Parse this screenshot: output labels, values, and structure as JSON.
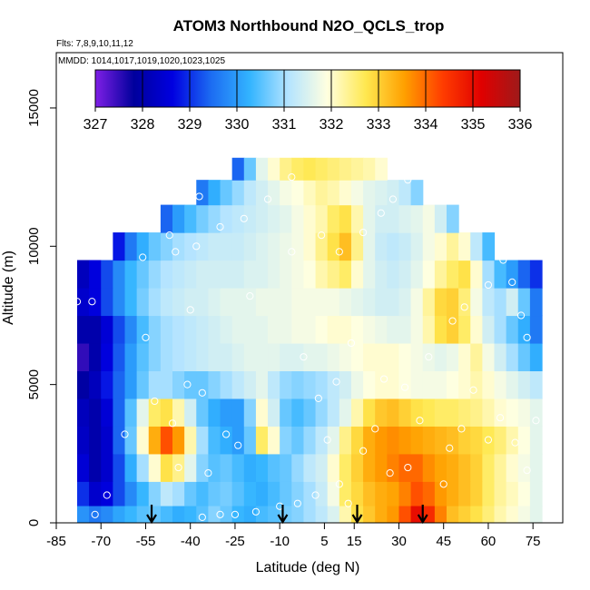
{
  "chart_data": {
    "type": "heatmap",
    "title": "ATOM3 Northbound N2O_QCLS_trop",
    "subtitle_flights": "Flts: 7,8,9,10,11,12",
    "subtitle_dates": "MMDD: 1014,1017,1019,1020,1023,1025",
    "xlabel": "Latitude (deg N)",
    "ylabel": "Altitude (m)",
    "xlim": [
      -85,
      85
    ],
    "ylim": [
      0,
      17000
    ],
    "x_ticks": [
      -85,
      -70,
      -55,
      -40,
      -25,
      -10,
      5,
      15,
      30,
      45,
      60,
      75
    ],
    "y_ticks": [
      0,
      5000,
      10000,
      15000
    ],
    "colorbar": {
      "ticks": [
        327,
        328,
        329,
        330,
        331,
        332,
        333,
        334,
        335,
        336
      ],
      "range": [
        327,
        336
      ],
      "colors": [
        "#7f1fe6",
        "#00009c",
        "#0000e0",
        "#1c6cf2",
        "#33b4ff",
        "#b4e4ff",
        "#ffffe0",
        "#ffe850",
        "#ffa000",
        "#ff3c00",
        "#e00000",
        "#9e1a1a"
      ]
    },
    "arrow_latitudes": [
      -53,
      -9,
      16,
      38
    ],
    "lat_bins": [
      -76,
      -72,
      -68,
      -64,
      -60,
      -56,
      -52,
      -48,
      -44,
      -40,
      -36,
      -32,
      -28,
      -24,
      -20,
      -16,
      -12,
      -8,
      -4,
      0,
      4,
      8,
      12,
      16,
      20,
      24,
      28,
      32,
      36,
      40,
      44,
      48,
      52,
      56,
      60,
      64,
      68,
      72,
      76
    ],
    "alt_levels": [
      250,
      1000,
      2000,
      3000,
      4000,
      5000,
      6000,
      7000,
      8000,
      9000,
      10000,
      11000,
      12000,
      12800
    ],
    "n2o_ppb": [
      [
        329.9,
        329.6,
        329.8,
        330.1,
        330.3,
        330.5,
        330.6,
        330.4,
        330.2,
        330.3,
        330.5,
        330.8,
        330.6,
        330.3,
        330.2,
        330.4,
        330.5,
        330.7,
        330.8,
        331.0,
        331.2,
        331.5,
        332.2,
        332.8,
        333.1,
        333.4,
        333.6,
        334.2,
        335.0,
        334.6,
        333.8,
        333.2,
        333.0,
        332.8,
        332.5,
        332.2,
        332.0,
        331.8,
        331.6
      ],
      [
        329.0,
        328.4,
        328.6,
        329.2,
        329.8,
        330.3,
        330.8,
        331.2,
        331.0,
        330.6,
        330.4,
        330.6,
        330.7,
        330.5,
        330.3,
        330.2,
        330.4,
        330.6,
        330.8,
        331.0,
        331.3,
        331.8,
        332.6,
        332.9,
        333.2,
        333.4,
        333.5,
        333.8,
        334.2,
        334.0,
        333.6,
        333.4,
        333.2,
        333.0,
        332.6,
        332.3,
        332.1,
        331.9,
        331.6
      ],
      [
        328.5,
        328.0,
        328.4,
        329.2,
        330.2,
        331.0,
        332.0,
        332.8,
        332.4,
        331.6,
        330.8,
        330.5,
        330.6,
        330.4,
        330.2,
        330.3,
        330.5,
        330.6,
        330.9,
        331.2,
        331.4,
        332.0,
        332.6,
        333.0,
        333.4,
        333.6,
        333.8,
        334.0,
        334.0,
        333.7,
        333.5,
        333.4,
        333.2,
        333.0,
        332.6,
        332.3,
        332.0,
        331.8,
        331.6
      ],
      [
        328.3,
        328.0,
        328.4,
        329.4,
        330.6,
        332.0,
        333.4,
        334.2,
        333.6,
        332.2,
        331.0,
        330.4,
        330.2,
        330.0,
        330.6,
        332.6,
        332.0,
        330.8,
        330.6,
        330.9,
        331.2,
        331.6,
        332.4,
        332.9,
        333.4,
        333.6,
        333.7,
        333.6,
        333.5,
        333.4,
        333.3,
        333.2,
        333.0,
        332.9,
        332.7,
        332.5,
        332.2,
        331.9,
        331.6
      ],
      [
        328.2,
        328.0,
        328.5,
        329.4,
        330.5,
        331.6,
        332.6,
        332.8,
        332.2,
        331.4,
        330.6,
        330.2,
        330.0,
        330.0,
        330.8,
        332.0,
        331.4,
        330.6,
        330.4,
        330.6,
        330.9,
        331.2,
        331.6,
        332.2,
        332.8,
        333.1,
        333.2,
        333.0,
        332.8,
        332.7,
        332.6,
        332.6,
        332.5,
        332.4,
        332.2,
        332.0,
        331.9,
        331.8,
        331.6
      ],
      [
        327.9,
        328.2,
        328.8,
        329.4,
        330.0,
        330.6,
        331.0,
        331.0,
        330.8,
        330.6,
        330.6,
        330.8,
        331.0,
        331.2,
        331.4,
        331.6,
        331.2,
        330.9,
        330.8,
        330.9,
        331.0,
        331.2,
        331.4,
        331.7,
        331.9,
        332.0,
        332.0,
        331.9,
        331.8,
        331.8,
        331.8,
        331.9,
        332.0,
        332.2,
        332.0,
        331.8,
        331.6,
        331.4,
        331.2
      ],
      [
        327.5,
        328.0,
        328.6,
        329.3,
        330.0,
        330.5,
        330.8,
        331.0,
        331.1,
        331.2,
        331.3,
        331.4,
        331.4,
        331.5,
        331.6,
        331.6,
        331.6,
        331.5,
        331.5,
        331.6,
        331.6,
        331.7,
        331.8,
        331.9,
        332.0,
        332.0,
        332.0,
        331.9,
        331.8,
        331.7,
        331.6,
        331.7,
        332.0,
        332.3,
        331.8,
        331.4,
        331.0,
        330.6,
        330.2
      ],
      [
        328.0,
        328.0,
        328.5,
        329.2,
        329.8,
        330.4,
        330.8,
        331.0,
        331.1,
        331.2,
        331.3,
        331.4,
        331.5,
        331.6,
        331.6,
        331.6,
        331.7,
        331.7,
        331.8,
        331.8,
        331.9,
        332.0,
        332.0,
        331.9,
        331.8,
        331.7,
        331.6,
        331.6,
        331.8,
        332.2,
        332.8,
        333.0,
        332.6,
        332.0,
        331.4,
        331.0,
        330.6,
        330.2,
        329.6
      ],
      [
        328.4,
        328.6,
        329.2,
        329.8,
        330.3,
        330.7,
        331.0,
        331.2,
        331.3,
        331.4,
        331.4,
        331.5,
        331.6,
        331.6,
        331.6,
        331.7,
        331.7,
        331.7,
        331.8,
        331.8,
        331.8,
        331.8,
        331.7,
        331.6,
        331.5,
        331.4,
        331.4,
        331.5,
        331.8,
        332.3,
        332.9,
        333.0,
        332.5,
        331.8,
        331.2,
        331.0,
        331.4,
        330.6,
        329.6
      ],
      [
        328.2,
        328.6,
        329.2,
        329.8,
        330.3,
        330.6,
        330.9,
        331.1,
        331.2,
        331.3,
        331.4,
        331.4,
        331.4,
        331.4,
        331.5,
        331.5,
        331.6,
        331.7,
        331.8,
        331.9,
        332.2,
        332.4,
        332.6,
        332.0,
        331.6,
        331.4,
        331.3,
        331.4,
        331.6,
        331.9,
        332.3,
        332.6,
        332.8,
        332.0,
        331.0,
        330.4,
        330.0,
        329.4,
        329.0
      ],
      [
        null,
        null,
        null,
        328.8,
        329.6,
        330.2,
        330.6,
        330.8,
        331.0,
        331.1,
        331.2,
        331.3,
        331.3,
        331.3,
        331.4,
        331.5,
        331.6,
        331.7,
        331.8,
        332.0,
        332.4,
        332.8,
        333.2,
        332.4,
        331.6,
        331.3,
        331.2,
        331.3,
        331.5,
        331.8,
        332.0,
        332.3,
        332.0,
        331.2,
        330.4,
        null,
        null,
        null,
        null
      ],
      [
        null,
        null,
        null,
        null,
        null,
        null,
        null,
        329.4,
        330.0,
        330.4,
        330.7,
        330.9,
        331.1,
        331.2,
        331.3,
        331.4,
        331.5,
        331.6,
        331.8,
        332.0,
        332.2,
        332.6,
        332.8,
        332.2,
        331.6,
        331.4,
        331.4,
        331.5,
        331.6,
        331.8,
        331.4,
        330.8,
        null,
        null,
        null,
        null,
        null,
        null,
        null
      ],
      [
        null,
        null,
        null,
        null,
        null,
        null,
        null,
        null,
        null,
        null,
        329.6,
        330.2,
        330.6,
        330.9,
        331.2,
        331.4,
        331.6,
        331.8,
        331.9,
        332.1,
        332.3,
        332.2,
        332.0,
        331.8,
        331.6,
        331.5,
        331.4,
        331.2,
        330.8,
        null,
        null,
        null,
        null,
        null,
        null,
        null,
        null,
        null,
        null
      ],
      [
        null,
        null,
        null,
        null,
        null,
        null,
        null,
        null,
        null,
        null,
        null,
        null,
        null,
        329.4,
        330.6,
        331.6,
        332.0,
        332.4,
        332.6,
        332.7,
        332.6,
        332.5,
        332.4,
        332.3,
        332.2,
        332.0,
        null,
        null,
        null,
        null,
        null,
        null,
        null,
        null,
        null,
        null,
        null,
        null,
        null
      ]
    ],
    "points": [
      [
        -72,
        300
      ],
      [
        -68,
        1000
      ],
      [
        -62,
        3200
      ],
      [
        -44,
        2000
      ],
      [
        -46,
        3600
      ],
      [
        -52,
        4400
      ],
      [
        -41,
        5000
      ],
      [
        -36,
        4700
      ],
      [
        -28,
        3200
      ],
      [
        -24,
        2800
      ],
      [
        -34,
        1800
      ],
      [
        -36,
        200
      ],
      [
        -30,
        300
      ],
      [
        -25,
        300
      ],
      [
        -18,
        400
      ],
      [
        -10,
        600
      ],
      [
        -4,
        700
      ],
      [
        2,
        1000
      ],
      [
        6,
        3000
      ],
      [
        10,
        1400
      ],
      [
        13,
        700
      ],
      [
        18,
        2600
      ],
      [
        22,
        3400
      ],
      [
        27,
        1800
      ],
      [
        33,
        2000
      ],
      [
        37,
        3700
      ],
      [
        45,
        1400
      ],
      [
        47,
        2700
      ],
      [
        51,
        3400
      ],
      [
        55,
        4800
      ],
      [
        60,
        3000
      ],
      [
        64,
        3800
      ],
      [
        69,
        2900
      ],
      [
        73,
        1900
      ],
      [
        76,
        3700
      ],
      [
        -73,
        8000
      ],
      [
        -78,
        8000
      ],
      [
        -55,
        6700
      ],
      [
        -40,
        7700
      ],
      [
        -20,
        8200
      ],
      [
        -6,
        9800
      ],
      [
        -2,
        6000
      ],
      [
        3,
        4500
      ],
      [
        9,
        5100
      ],
      [
        14,
        6500
      ],
      [
        25,
        5200
      ],
      [
        32,
        4900
      ],
      [
        40,
        6000
      ],
      [
        48,
        7300
      ],
      [
        52,
        7800
      ],
      [
        60,
        8600
      ],
      [
        65,
        9500
      ],
      [
        68,
        8700
      ],
      [
        71,
        7500
      ],
      [
        73,
        6700
      ],
      [
        -75,
        10000
      ],
      [
        -56,
        9600
      ],
      [
        -45,
        9800
      ],
      [
        -38,
        10000
      ],
      [
        -30,
        10700
      ],
      [
        -22,
        11000
      ],
      [
        -14,
        11700
      ],
      [
        -6,
        12500
      ],
      [
        4,
        10400
      ],
      [
        10,
        9800
      ],
      [
        18,
        10500
      ],
      [
        24,
        11200
      ],
      [
        28,
        11700
      ],
      [
        33,
        12400
      ],
      [
        -37,
        11800
      ],
      [
        -47,
        10400
      ]
    ]
  }
}
